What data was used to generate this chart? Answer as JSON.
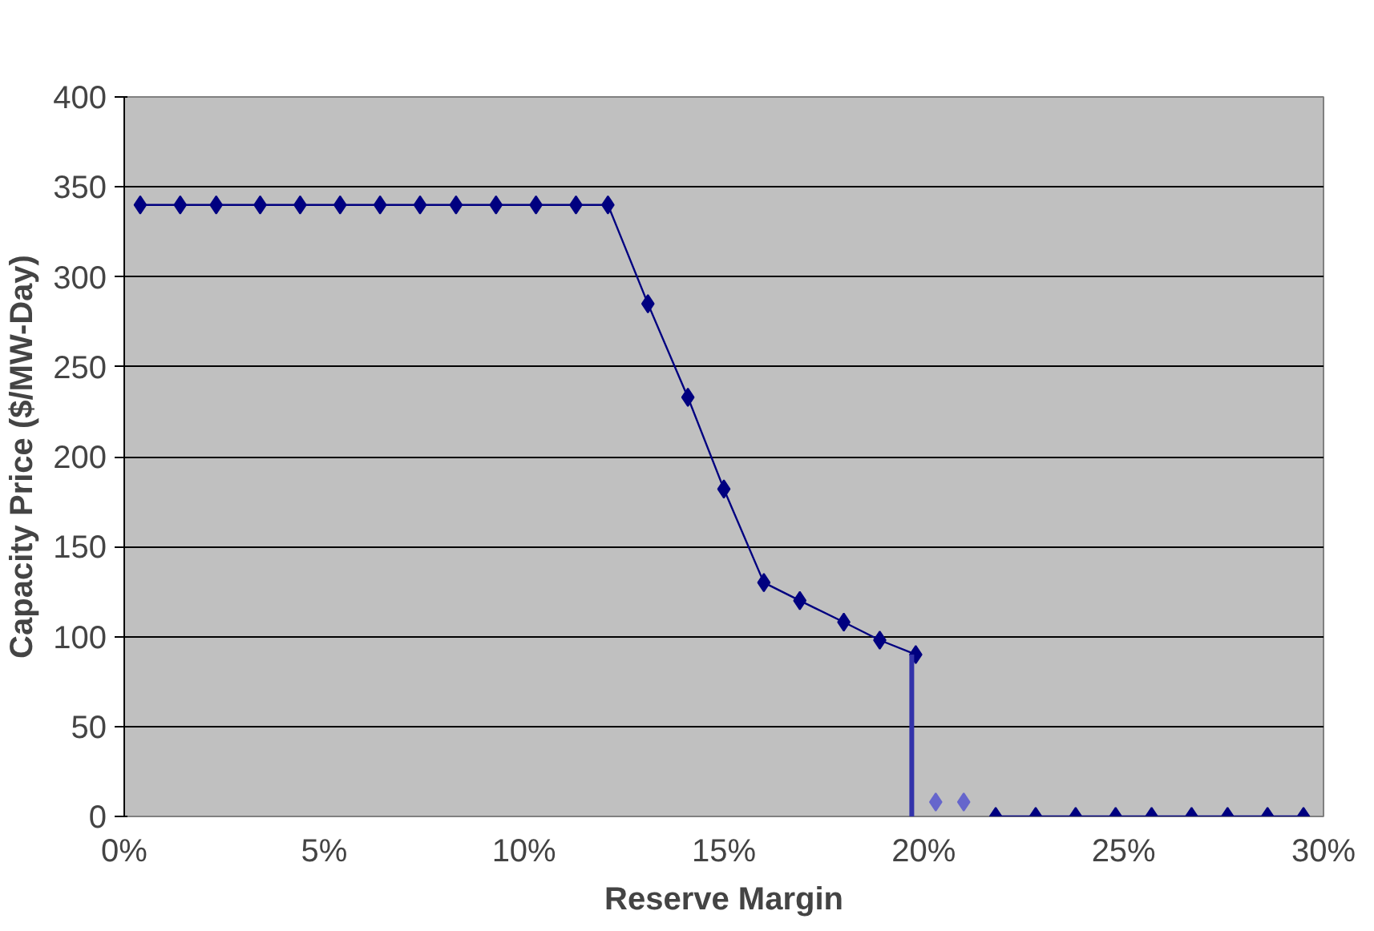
{
  "chart_data": {
    "type": "line",
    "xlabel": "Reserve Margin",
    "ylabel": "Capacity Price ($/MW-Day)",
    "xlim": [
      0,
      30
    ],
    "ylim": [
      0,
      400
    ],
    "xticks": [
      {
        "value": 0,
        "label": "0%"
      },
      {
        "value": 5,
        "label": "5%"
      },
      {
        "value": 10,
        "label": "10%"
      },
      {
        "value": 15,
        "label": "15%"
      },
      {
        "value": 20,
        "label": "20%"
      },
      {
        "value": 25,
        "label": "25%"
      },
      {
        "value": 30,
        "label": "30%"
      }
    ],
    "yticks": [
      0,
      50,
      100,
      150,
      200,
      250,
      300,
      350,
      400
    ],
    "grid": "y",
    "marker": "diamond",
    "series": [
      {
        "color": "#000080",
        "x": [
          0.4,
          1.4,
          2.3,
          3.4,
          4.4,
          5.4,
          6.4,
          7.4,
          8.3,
          9.3,
          10.3,
          11.3,
          12.1,
          13.1,
          14.1,
          15.0,
          16.0,
          16.9,
          18.0,
          18.9,
          19.8
        ],
        "values": [
          340,
          340,
          340,
          340,
          340,
          340,
          340,
          340,
          340,
          340,
          340,
          340,
          340,
          285,
          233,
          182,
          130,
          120,
          108,
          98,
          90
        ]
      },
      {
        "color": "#3333aa",
        "marker": "none",
        "x": [
          19.7,
          19.7
        ],
        "values": [
          90,
          0
        ]
      },
      {
        "type": "scatter",
        "color": "#6666cc",
        "x": [
          20.3,
          21.0
        ],
        "values": [
          8,
          8
        ]
      },
      {
        "color": "#000080",
        "x": [
          21.8,
          22.8,
          23.8,
          24.8,
          25.7,
          26.7,
          27.6,
          28.6,
          29.5
        ],
        "values": [
          0,
          0,
          0,
          0,
          0,
          0,
          0,
          0,
          0
        ]
      }
    ]
  }
}
